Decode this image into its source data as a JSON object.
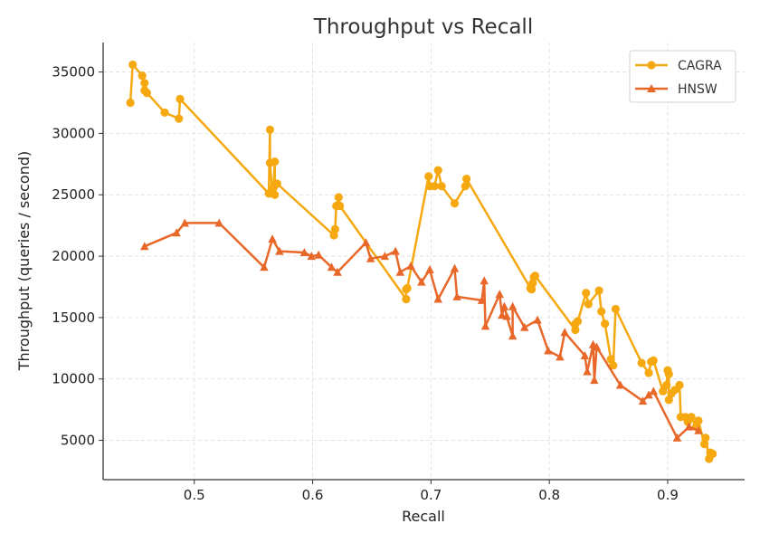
{
  "chart_data": {
    "type": "line",
    "title": "Throughput vs Recall",
    "xlabel": "Recall",
    "ylabel": "Throughput (queries / second)",
    "xlim": [
      0.423,
      0.965
    ],
    "ylim": [
      1800,
      37400
    ],
    "xticks": [
      0.5,
      0.6,
      0.7,
      0.8,
      0.9
    ],
    "xtick_labels": [
      "0.5",
      "0.6",
      "0.7",
      "0.8",
      "0.9"
    ],
    "yticks": [
      5000,
      10000,
      15000,
      20000,
      25000,
      30000,
      35000
    ],
    "ytick_labels": [
      "5000",
      "10000",
      "15000",
      "20000",
      "25000",
      "30000",
      "35000"
    ],
    "grid": true,
    "legend_position": "top-right",
    "series": [
      {
        "name": "CAGRA",
        "color": "#f5a80f",
        "marker": "circle",
        "x": [
          0.446,
          0.448,
          0.456,
          0.458,
          0.458,
          0.46,
          0.475,
          0.487,
          0.488,
          0.563,
          0.564,
          0.564,
          0.566,
          0.567,
          0.568,
          0.568,
          0.569,
          0.57,
          0.618,
          0.619,
          0.62,
          0.622,
          0.623,
          0.679,
          0.679,
          0.68,
          0.698,
          0.699,
          0.703,
          0.706,
          0.709,
          0.72,
          0.729,
          0.73,
          0.784,
          0.785,
          0.786,
          0.787,
          0.788,
          0.822,
          0.822,
          0.824,
          0.831,
          0.833,
          0.842,
          0.844,
          0.847,
          0.852,
          0.854,
          0.856,
          0.878,
          0.884,
          0.886,
          0.888,
          0.896,
          0.899,
          0.9,
          0.901,
          0.901,
          0.903,
          0.906,
          0.91,
          0.911,
          0.915,
          0.917,
          0.919,
          0.92,
          0.924,
          0.926,
          0.931,
          0.932,
          0.935,
          0.936,
          0.938
        ],
        "y": [
          32500,
          35600,
          34700,
          34100,
          33500,
          33300,
          31700,
          31200,
          32800,
          25100,
          30300,
          27600,
          25100,
          25600,
          27700,
          25000,
          25900,
          25900,
          21700,
          22200,
          24100,
          24800,
          24100,
          16500,
          17300,
          17400,
          26500,
          25700,
          25700,
          27000,
          25700,
          24300,
          25700,
          26300,
          17400,
          17300,
          17800,
          18300,
          18400,
          14000,
          14500,
          14700,
          17000,
          16100,
          17200,
          15500,
          14500,
          11600,
          11100,
          15700,
          11300,
          10500,
          11400,
          11500,
          9000,
          9500,
          10700,
          10400,
          8300,
          8800,
          9100,
          9500,
          6900,
          6900,
          6500,
          6800,
          6900,
          6100,
          6600,
          4700,
          5200,
          3500,
          4000,
          3900
        ]
      },
      {
        "name": "HNSW",
        "color": "#e8682a",
        "marker": "triangle",
        "x": [
          0.458,
          0.485,
          0.492,
          0.521,
          0.559,
          0.566,
          0.572,
          0.593,
          0.599,
          0.605,
          0.616,
          0.621,
          0.645,
          0.649,
          0.661,
          0.67,
          0.674,
          0.683,
          0.692,
          0.699,
          0.706,
          0.72,
          0.722,
          0.743,
          0.745,
          0.746,
          0.758,
          0.76,
          0.762,
          0.764,
          0.769,
          0.769,
          0.779,
          0.79,
          0.799,
          0.809,
          0.813,
          0.83,
          0.832,
          0.837,
          0.838,
          0.84,
          0.86,
          0.879,
          0.884,
          0.888,
          0.908,
          0.918,
          0.926
        ],
        "y": [
          20800,
          21900,
          22700,
          22700,
          19100,
          21400,
          20400,
          20300,
          20000,
          20100,
          19100,
          18700,
          21100,
          19800,
          20000,
          20400,
          18700,
          19200,
          17900,
          18900,
          16500,
          19000,
          16700,
          16400,
          18000,
          14300,
          16900,
          15200,
          15900,
          15100,
          13500,
          15900,
          14200,
          14800,
          12300,
          11800,
          13800,
          11900,
          10600,
          12800,
          9900,
          12600,
          9500,
          8200,
          8700,
          9000,
          5200,
          6100,
          5800
        ]
      }
    ]
  }
}
